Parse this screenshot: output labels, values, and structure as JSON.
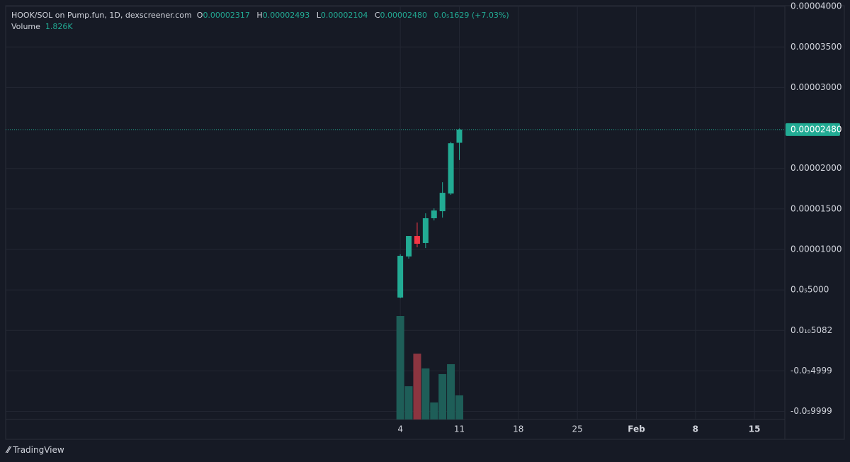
{
  "header": {
    "title": "HOOK/SOL on Pump.fun, 1D, dexscreener.com",
    "o_label": "O",
    "o_value": "0.00002317",
    "h_label": "H",
    "h_value": "0.00002493",
    "l_label": "L",
    "l_value": "0.00002104",
    "c_label": "C",
    "c_value": "0.00002480",
    "change": "0.0₅1629 (+7.03%)",
    "volume_label": "Volume",
    "volume_value": "1.826K"
  },
  "chart_data": {
    "type": "candlestick",
    "x": [
      4,
      5,
      6,
      7,
      8,
      9,
      10,
      11
    ],
    "open": [
      4.06e-06,
      9.13e-06,
      1.166e-05,
      1.079e-05,
      1.385e-05,
      1.472e-05,
      1.69e-05,
      2.317e-05
    ],
    "high": [
      9.39e-06,
      1.166e-05,
      1.332e-05,
      1.446e-05,
      1.507e-05,
      1.83e-05,
      2.329e-05,
      2.493e-05
    ],
    "low": [
      3.97e-06,
      8.86e-06,
      1.026e-05,
      1.017e-05,
      1.358e-05,
      1.393e-05,
      1.673e-05,
      2.104e-05
    ],
    "close": [
      9.21e-06,
      1.166e-05,
      1.07e-05,
      1.385e-05,
      1.481e-05,
      1.699e-05,
      2.311e-05,
      2.48e-05
    ],
    "volume": [
      7840,
      2520,
      4990,
      3870,
      1290,
      3440,
      4190,
      1826
    ],
    "volume_ylim": [
      0,
      31360
    ],
    "up_color": "#22ab94",
    "down_color": "#f23645",
    "volume_up_color": "#1e5e58",
    "volume_down_color": "#8c3540",
    "xlim": [
      -42.8,
      49.6
    ],
    "xticks": [
      4,
      11,
      18,
      25,
      {
        "value": 32,
        "label": "Feb"
      },
      {
        "value": 39,
        "label": "8"
      },
      {
        "value": 46,
        "label": "15"
      }
    ],
    "ylim": [
      -1.1e-05,
      4.01e-05
    ],
    "yticks": [
      {
        "value": 4e-05,
        "label": "0.00004000"
      },
      {
        "value": 3.5e-05,
        "label": "0.00003500"
      },
      {
        "value": 3e-05,
        "label": "0.00003000"
      },
      {
        "value": 2e-05,
        "label": "0.00002000"
      },
      {
        "value": 1.5e-05,
        "label": "0.00001500"
      },
      {
        "value": 1e-05,
        "label": "0.00001000"
      },
      {
        "value": 5e-06,
        "label": "0.0₅5000"
      },
      {
        "value": 5.082e-11,
        "label": "0.0₁₀5082"
      },
      {
        "value": -4.999e-06,
        "label": "-0.0₅4999"
      },
      {
        "value": -9.999e-06,
        "label": "-0.0₅9999"
      }
    ],
    "last_price": {
      "value": 2.48e-05,
      "label": "0.00002480"
    },
    "grid": true
  },
  "footer": {
    "brand": "TradingView"
  }
}
